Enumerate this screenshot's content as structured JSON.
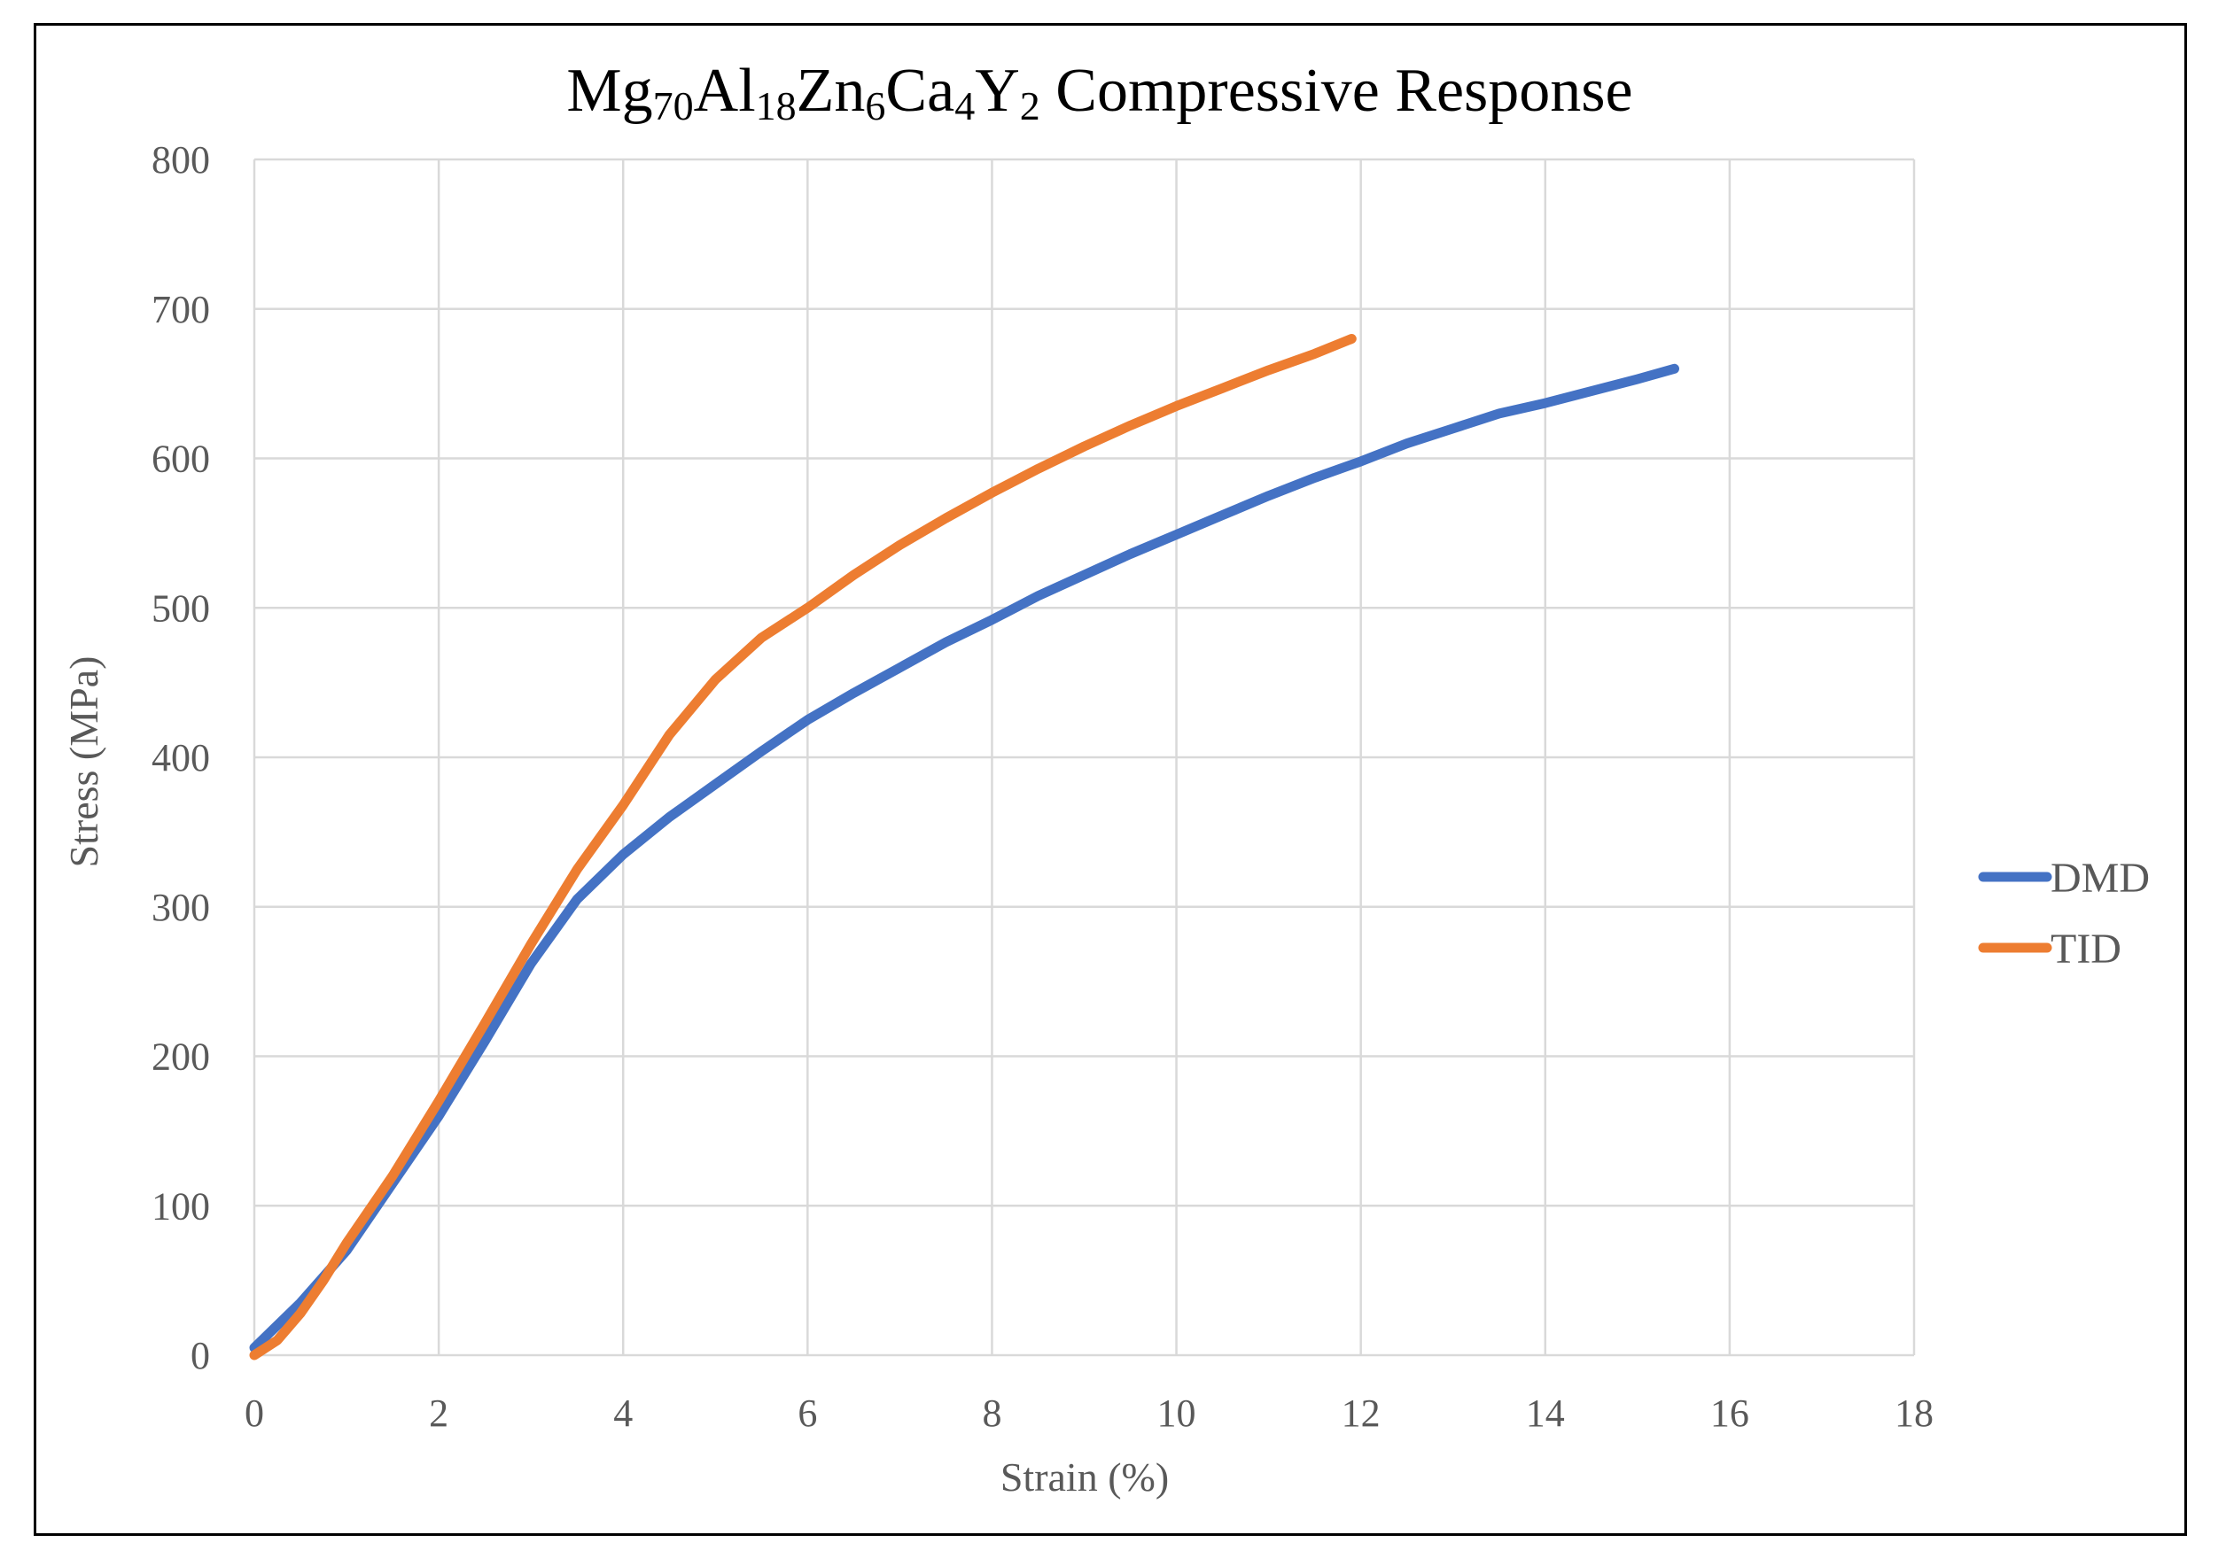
{
  "chart_data": {
    "type": "line",
    "title_parts": [
      {
        "text": "Mg",
        "sub": false
      },
      {
        "text": "70",
        "sub": true
      },
      {
        "text": "Al",
        "sub": false
      },
      {
        "text": "18",
        "sub": true
      },
      {
        "text": "Zn",
        "sub": false
      },
      {
        "text": "6",
        "sub": true
      },
      {
        "text": "Ca",
        "sub": false
      },
      {
        "text": "4",
        "sub": true
      },
      {
        "text": "Y",
        "sub": false
      },
      {
        "text": "2",
        "sub": true
      },
      {
        "text": " Compressive Response",
        "sub": false
      }
    ],
    "xlabel": "Strain (%)",
    "ylabel": "Stress (MPa)",
    "xlim": [
      0,
      18
    ],
    "ylim": [
      0,
      800
    ],
    "xticks": [
      0,
      2,
      4,
      6,
      8,
      10,
      12,
      14,
      16,
      18
    ],
    "yticks": [
      0,
      100,
      200,
      300,
      400,
      500,
      600,
      700,
      800
    ],
    "grid": true,
    "legend_position": "right",
    "series": [
      {
        "name": "DMD",
        "color": "#4472C4",
        "x": [
          0,
          0.5,
          1.0,
          1.5,
          2.0,
          2.5,
          3.0,
          3.5,
          4.0,
          4.5,
          5.0,
          5.5,
          6.0,
          6.5,
          7.0,
          7.5,
          8.0,
          8.5,
          9.0,
          9.5,
          10.0,
          10.5,
          11.0,
          11.5,
          12.0,
          12.5,
          13.0,
          13.5,
          14.0,
          14.5,
          15.0,
          15.4
        ],
        "y": [
          5,
          35,
          70,
          115,
          160,
          210,
          262,
          305,
          335,
          360,
          382,
          404,
          425,
          443,
          460,
          477,
          492,
          508,
          522,
          536,
          549,
          562,
          575,
          587,
          598,
          610,
          620,
          630,
          637,
          645,
          653,
          660
        ]
      },
      {
        "name": "TID",
        "color": "#ED7D31",
        "x": [
          0,
          0.25,
          0.5,
          0.75,
          1.0,
          1.5,
          2.0,
          2.5,
          3.0,
          3.5,
          4.0,
          4.5,
          5.0,
          5.5,
          6.0,
          6.5,
          7.0,
          7.5,
          8.0,
          8.5,
          9.0,
          9.5,
          10.0,
          10.5,
          11.0,
          11.5,
          11.9
        ],
        "y": [
          0,
          10,
          28,
          50,
          75,
          120,
          170,
          222,
          275,
          325,
          368,
          415,
          452,
          480,
          500,
          522,
          542,
          560,
          577,
          593,
          608,
          622,
          635,
          647,
          659,
          670,
          680
        ]
      }
    ]
  }
}
